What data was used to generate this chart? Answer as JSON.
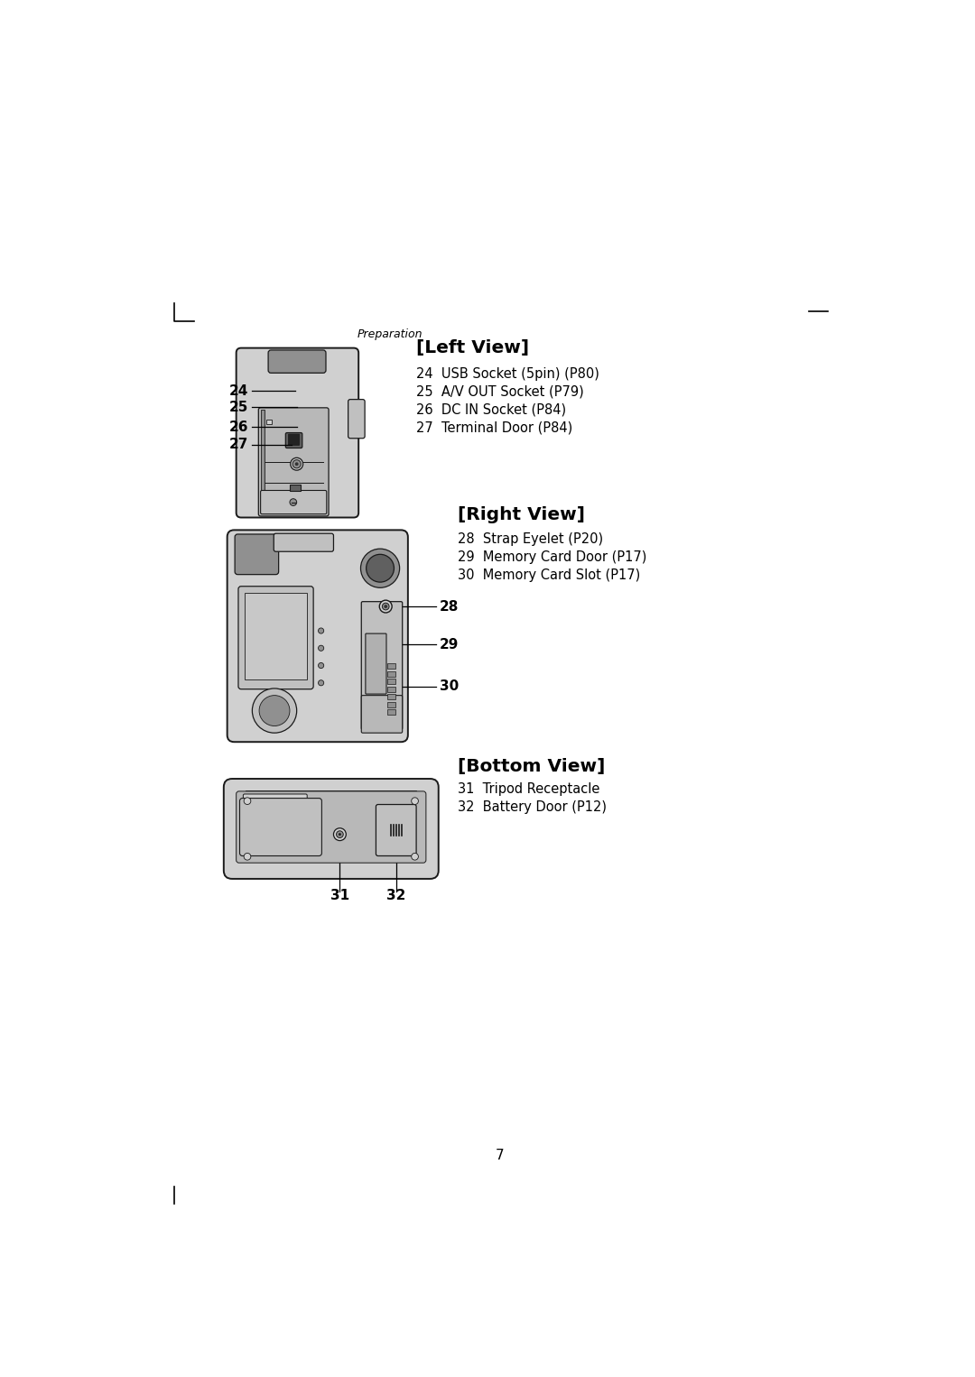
{
  "page_bg": "#ffffff",
  "page_number": "7",
  "preparation_label": "Preparation",
  "left_view_title": "[Left View]",
  "left_view_items": [
    "24  USB Socket (5pin) (P80)",
    "25  A/V OUT Socket (P79)",
    "26  DC IN Socket (P84)",
    "27  Terminal Door (P84)"
  ],
  "right_view_title": "[Right View]",
  "right_view_items": [
    "28  Strap Eyelet (P20)",
    "29  Memory Card Door (P17)",
    "30  Memory Card Slot (P17)"
  ],
  "bottom_view_title": "[Bottom View]",
  "bottom_view_items": [
    "31  Tripod Receptacle",
    "32  Battery Door (P12)"
  ],
  "text_color": "#000000",
  "line_color": "#000000",
  "camera_fill": "#d0d0d0",
  "camera_fill2": "#c0c0c0",
  "camera_dark": "#909090",
  "camera_darker": "#606060",
  "camera_outline": "#1a1a1a",
  "camera_inner": "#b8b8b8"
}
